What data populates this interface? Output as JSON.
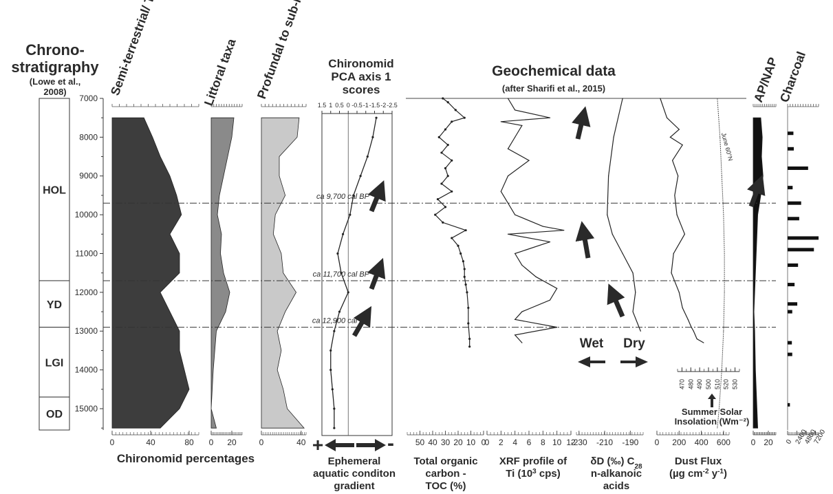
{
  "figure": {
    "chronostratigraphy_title": [
      "Chrono-",
      "stratigraphy"
    ],
    "chronostratigraphy_citation": [
      "(Lowe et al.,",
      "2008)"
    ],
    "geochem_title": "Geochemical data",
    "geochem_citation": "(after Sharifi et al., 2015)",
    "chironomid_percentages_label": "Chironomid percentages",
    "age_ticks": [
      7000,
      8000,
      9000,
      10000,
      11000,
      12000,
      13000,
      14000,
      15000
    ],
    "age_range": [
      7000,
      15550
    ],
    "zones": [
      {
        "label": "HOL",
        "top": 7000,
        "bottom": 11700
      },
      {
        "label": "YD",
        "top": 11700,
        "bottom": 12900
      },
      {
        "label": "LGI",
        "top": 12900,
        "bottom": 14700
      },
      {
        "label": "OD",
        "top": 14700,
        "bottom": 15550
      }
    ],
    "events": [
      {
        "age": 9700,
        "label": "ca 9,700 cal BP"
      },
      {
        "age": 11700,
        "label": "ca 11,700 cal BP"
      },
      {
        "age": 12900,
        "label": "ca 12,900 cal BP"
      }
    ],
    "wet_label": "Wet",
    "dry_label": "Dry",
    "insolation_label": [
      "Summer Solar",
      "Insolation  (Wm⁻²)"
    ],
    "insolation_curve_label": "June 60°N",
    "pca_gradient_label": [
      "Ephemeral",
      "aquatic conditon",
      "gradient"
    ],
    "plus_sign": "+",
    "minus_sign": "-",
    "colors": {
      "terrestrial": "#3d3d3d",
      "littoral": "#8a8a8a",
      "profundal": "#c9c9c9",
      "apnap": "#111111"
    }
  },
  "chart_data": [
    {
      "type": "area",
      "title": "Semi-terrestrial/ Terrestrial taxa",
      "xticks": [
        "0",
        "40",
        "80"
      ],
      "xlim": [
        0,
        90
      ],
      "depth_values": [
        7500,
        8000,
        8500,
        9000,
        9500,
        10000,
        10500,
        11000,
        11500,
        12000,
        12500,
        13000,
        13500,
        14000,
        14500,
        15000,
        15500
      ],
      "values": [
        33,
        42,
        50,
        60,
        67,
        72,
        60,
        70,
        70,
        50,
        60,
        70,
        70,
        75,
        80,
        70,
        50
      ]
    },
    {
      "type": "area",
      "title": "Littoral taxa",
      "xticks": [
        "0",
        "20"
      ],
      "xlim": [
        0,
        30
      ],
      "depth_values": [
        7500,
        8000,
        8500,
        9000,
        9500,
        10000,
        10500,
        11000,
        11500,
        12000,
        12500,
        13000,
        14000,
        15000,
        15500
      ],
      "values": [
        22,
        20,
        16,
        12,
        8,
        6,
        10,
        9,
        12,
        18,
        14,
        5,
        2,
        0,
        5
      ]
    },
    {
      "type": "area",
      "title": "Profundal to sub-littoral taxa",
      "xticks": [
        "0",
        "40"
      ],
      "xlim": [
        0,
        45
      ],
      "depth_values": [
        7500,
        8000,
        8500,
        9000,
        9500,
        10000,
        10500,
        11000,
        11500,
        12000,
        12500,
        13000,
        13500,
        14000,
        14500,
        15000,
        15500
      ],
      "values": [
        38,
        36,
        18,
        18,
        24,
        14,
        12,
        20,
        22,
        35,
        24,
        16,
        20,
        16,
        22,
        26,
        43
      ]
    },
    {
      "type": "line",
      "title": "Chironomid PCA axis 1 scores",
      "xticks": [
        "1.5",
        "1",
        "0.5",
        "0",
        "-0.5",
        "-1",
        "-1.5",
        "-2",
        "-2.5"
      ],
      "xlim": [
        1.5,
        -2.5
      ],
      "y": [
        7500,
        8000,
        8500,
        9000,
        9500,
        10000,
        10500,
        11000,
        11500,
        12000,
        12500,
        13000,
        13500,
        14000,
        14500,
        15000,
        15500
      ],
      "x": [
        -1.6,
        -1.4,
        -1.1,
        -0.7,
        -0.3,
        -0.1,
        0.3,
        0.6,
        0.4,
        0.0,
        0.5,
        0.8,
        1.0,
        1.0,
        0.9,
        0.8,
        0.8
      ]
    },
    {
      "type": "line",
      "title": "Total organic carbon - TOC (%)",
      "xticks": [
        "50",
        "40",
        "30",
        "20",
        "10",
        "0"
      ],
      "xlim": [
        60,
        0
      ],
      "y": [
        7000,
        7100,
        7300,
        7500,
        7600,
        7800,
        8000,
        8200,
        8400,
        8600,
        8800,
        9000,
        9200,
        9400,
        9600,
        9800,
        10000,
        10200,
        10400,
        10600,
        10800,
        11000,
        11200,
        11400,
        11600,
        11800,
        12000,
        12400,
        12800,
        13200,
        13400
      ],
      "x": [
        32,
        28,
        22,
        15,
        25,
        30,
        35,
        28,
        33,
        25,
        30,
        28,
        33,
        25,
        36,
        30,
        38,
        32,
        14,
        25,
        20,
        18,
        16,
        15,
        15,
        14,
        13,
        12,
        12,
        11,
        11
      ]
    },
    {
      "type": "line",
      "title": "XRF profile of Ti (10³ cps)",
      "xticks": [
        "0",
        "2",
        "4",
        "6",
        "8",
        "10",
        "12"
      ],
      "xlim": [
        0,
        12
      ],
      "y": [
        7000,
        7300,
        7500,
        7600,
        7700,
        8000,
        8300,
        8600,
        9000,
        9400,
        9700,
        10000,
        10300,
        10400,
        10500,
        10700,
        11000,
        11300,
        11600,
        11900,
        12200,
        12500,
        12700,
        12900,
        13100,
        13300
      ],
      "x": [
        3,
        4,
        9,
        2,
        5,
        4,
        3,
        6,
        3,
        2,
        3,
        4,
        8,
        11,
        3,
        9,
        4,
        5,
        7,
        10,
        9,
        5,
        4,
        10,
        4,
        5
      ]
    },
    {
      "type": "line",
      "title": "δD (‰) C28 n-alkanoic acids",
      "xticks": [
        "-230",
        "-210",
        "-190"
      ],
      "xlim": [
        -232,
        -180
      ],
      "y": [
        7000,
        8000,
        9000,
        10000,
        10500,
        11000,
        11500,
        12000,
        12500,
        13000
      ],
      "x": [
        -196,
        -203,
        -207,
        -208,
        -204,
        -196,
        -188,
        -186,
        -188,
        -182
      ]
    },
    {
      "type": "line",
      "title": "Dust Flux (µg cm⁻² y⁻¹)",
      "xticks": [
        "0",
        "200",
        "400",
        "600"
      ],
      "xlim": [
        0,
        650
      ],
      "y": [
        7000,
        7500,
        7800,
        8000,
        8200,
        8600,
        9000,
        9500,
        10000,
        10500,
        11000,
        11500,
        12000,
        12400,
        12700,
        12900,
        13000,
        13200,
        13300
      ],
      "x": [
        30,
        90,
        200,
        120,
        230,
        140,
        190,
        160,
        180,
        250,
        150,
        130,
        200,
        230,
        280,
        310,
        330,
        360,
        420
      ]
    },
    {
      "type": "line",
      "title": "Summer Solar Insolation (Wm⁻²)",
      "series_label": "June 60°N",
      "xticks": [
        "470",
        "480",
        "490",
        "500",
        "510",
        "520",
        "530"
      ],
      "xlim": [
        465,
        535
      ],
      "y": [
        7000,
        8000,
        9000,
        10000,
        11000,
        12000,
        13000,
        14000,
        15000,
        15500
      ],
      "x": [
        510,
        513,
        515,
        517,
        518,
        518,
        517,
        515,
        512,
        510
      ]
    },
    {
      "type": "area",
      "title": "AP/NAP",
      "xticks": [
        "0",
        "20"
      ],
      "xlim": [
        0,
        30
      ],
      "depth_values": [
        7500,
        8000,
        8500,
        9000,
        9500,
        10000,
        10500,
        11000,
        11500,
        12000,
        12500,
        13000,
        14000,
        14500,
        15000,
        15500
      ],
      "values": [
        10,
        12,
        11,
        13,
        10,
        6,
        5,
        4,
        3,
        2,
        1,
        2,
        3,
        4,
        5,
        6
      ]
    },
    {
      "type": "bar",
      "title": "Charcoal",
      "xticks": [
        "0",
        "2400",
        "4800",
        "7200"
      ],
      "xlim": [
        0,
        8000
      ],
      "depths": [
        7900,
        8300,
        8800,
        9300,
        9700,
        10100,
        10600,
        10900,
        11300,
        11800,
        12300,
        12500,
        13300,
        13600,
        14900
      ],
      "values": [
        1500,
        1600,
        5300,
        1300,
        3500,
        3000,
        8000,
        6800,
        2700,
        1800,
        2500,
        1200,
        1100,
        1200,
        600
      ]
    }
  ]
}
